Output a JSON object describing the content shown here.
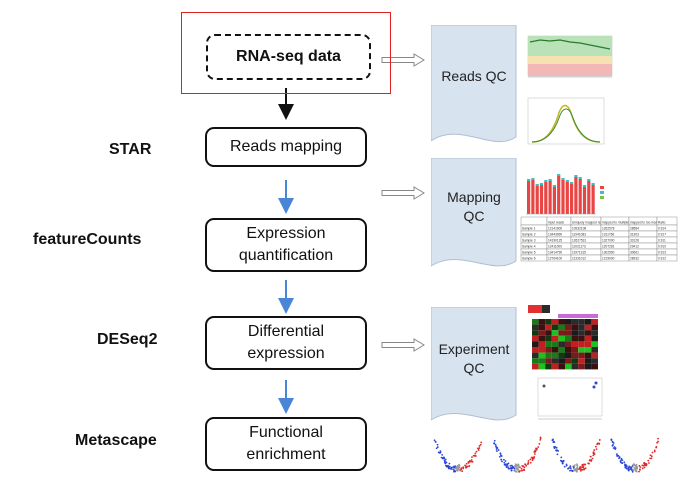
{
  "input": {
    "label": "RNA-seq data"
  },
  "steps": [
    {
      "tool": "STAR",
      "label": "Reads mapping"
    },
    {
      "tool": "featureCounts",
      "label": "Expression\nquantification"
    },
    {
      "tool": "DESeq2",
      "label": "Differential\nexpression"
    },
    {
      "tool": "Metascape",
      "label": "Functional\nenrichment"
    }
  ],
  "qc": [
    {
      "label": "Reads QC"
    },
    {
      "label": "Mapping\nQC"
    },
    {
      "label": "Experiment\nQC"
    }
  ],
  "colors": {
    "red_frame": "#e0201c",
    "arrow_black": "#111111",
    "arrow_blue": "#4a86d8",
    "document": "#d8e3f0",
    "green_band": "#b9e2b9",
    "red_band": "#f2b8b8",
    "bar_red": "#e84545",
    "scatter_blue": "#2a45d8",
    "scatter_red": "#e02828"
  },
  "mapping_table": {
    "rows": [
      [
        "",
        "Input reads",
        "Uniquely mapped reads",
        "mapped to multiple loci",
        "mapped to too many loci",
        "Ratio"
      ],
      [
        "Sample 1",
        "12141900",
        "10932108",
        "1262578",
        "28584",
        "0.914"
      ],
      [
        "Sample 2",
        "13443990",
        "11941083",
        "1311766",
        "31303",
        "0.917"
      ],
      [
        "Sample 3",
        "14190125",
        "12627531",
        "1327000",
        "33128",
        "0.911"
      ],
      [
        "Sample 4",
        "12411000",
        "11021173",
        "1207281",
        "29412",
        "0.910"
      ],
      [
        "Sample 5",
        "13414790",
        "11971315",
        "1302590",
        "30661",
        "0.913"
      ],
      [
        "Sample 6",
        "12764100",
        "11331012",
        "1219000",
        "28932",
        "0.912"
      ]
    ]
  }
}
